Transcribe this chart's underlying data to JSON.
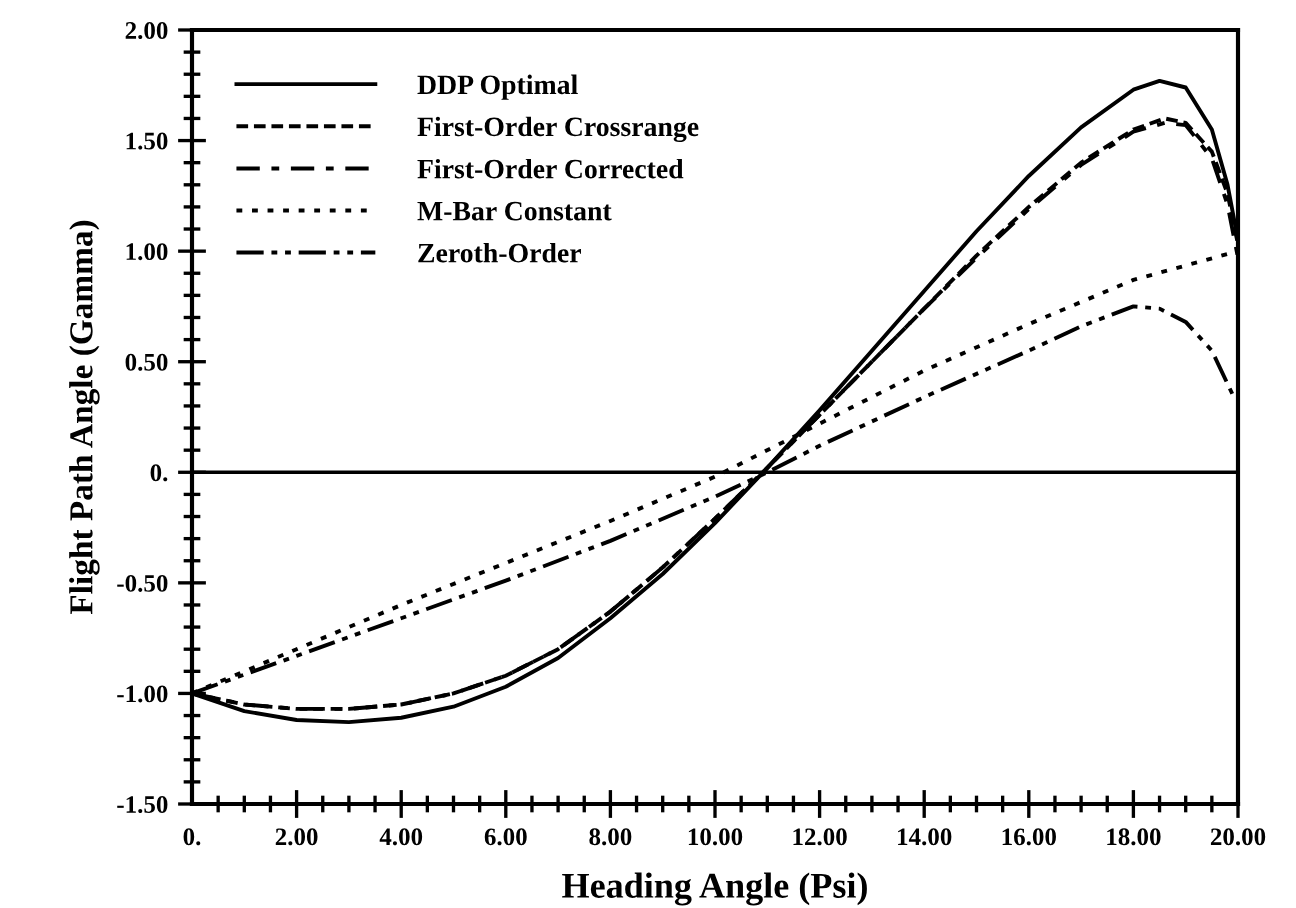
{
  "chart_data": {
    "type": "line",
    "xlabel": "Heading Angle (Psi)",
    "ylabel": "Flight Path Angle (Gamma)",
    "xlim": [
      0,
      20
    ],
    "ylim": [
      -1.5,
      2.0
    ],
    "xticks": [
      {
        "value": 0,
        "label": "0."
      },
      {
        "value": 2,
        "label": "2.00"
      },
      {
        "value": 4,
        "label": "4.00"
      },
      {
        "value": 6,
        "label": "6.00"
      },
      {
        "value": 8,
        "label": "8.00"
      },
      {
        "value": 10,
        "label": "10.00"
      },
      {
        "value": 12,
        "label": "12.00"
      },
      {
        "value": 14,
        "label": "14.00"
      },
      {
        "value": 16,
        "label": "16.00"
      },
      {
        "value": 18,
        "label": "18.00"
      },
      {
        "value": 20,
        "label": "20.00"
      }
    ],
    "yticks": [
      {
        "value": -1.5,
        "label": "-1.50"
      },
      {
        "value": -1.0,
        "label": "-1.00"
      },
      {
        "value": -0.5,
        "label": "-0.50"
      },
      {
        "value": 0,
        "label": "0."
      },
      {
        "value": 0.5,
        "label": "0.50"
      },
      {
        "value": 1.0,
        "label": "1.00"
      },
      {
        "value": 1.5,
        "label": "1.50"
      },
      {
        "value": 2.0,
        "label": "2.00"
      }
    ],
    "grid": false,
    "legend": "top left",
    "marker": "none",
    "ref_lines": [
      {
        "axis": "y",
        "value": 0,
        "color": "#000000",
        "line_style": "solid"
      }
    ],
    "series": [
      {
        "name": "DDP Optimal",
        "color": "#000000",
        "line_style": "solid",
        "x": [
          0,
          1,
          2,
          3,
          4,
          5,
          6,
          7,
          8,
          9,
          10,
          11,
          12,
          13,
          14,
          15,
          16,
          17,
          18,
          18.5,
          19,
          19.5,
          19.8,
          20
        ],
        "values": [
          -1.0,
          -1.08,
          -1.12,
          -1.13,
          -1.11,
          -1.06,
          -0.97,
          -0.84,
          -0.66,
          -0.46,
          -0.23,
          0.02,
          0.28,
          0.55,
          0.82,
          1.09,
          1.34,
          1.56,
          1.73,
          1.77,
          1.74,
          1.55,
          1.3,
          1.05
        ]
      },
      {
        "name": "First-Order Crossrange",
        "color": "#000000",
        "line_style": "dashed",
        "x": [
          0,
          1,
          2,
          3,
          4,
          5,
          6,
          7,
          8,
          9,
          10,
          11,
          12,
          13,
          14,
          15,
          16,
          17,
          18,
          18.6,
          19,
          19.5,
          19.8,
          20
        ],
        "values": [
          -1.0,
          -1.05,
          -1.07,
          -1.07,
          -1.05,
          -1.0,
          -0.92,
          -0.8,
          -0.63,
          -0.43,
          -0.21,
          0.02,
          0.26,
          0.5,
          0.74,
          0.98,
          1.2,
          1.4,
          1.55,
          1.6,
          1.58,
          1.45,
          1.26,
          1.03
        ]
      },
      {
        "name": "First-Order Corrected",
        "color": "#000000",
        "line_style": "dashdot",
        "x": [
          0,
          1,
          2,
          3,
          4,
          5,
          6,
          7,
          8,
          9,
          10,
          11,
          12,
          13,
          14,
          15,
          16,
          17,
          18,
          18.6,
          19,
          19.5,
          19.8,
          20
        ],
        "values": [
          -1.0,
          -1.05,
          -1.07,
          -1.07,
          -1.05,
          -1.0,
          -0.92,
          -0.8,
          -0.63,
          -0.43,
          -0.21,
          0.02,
          0.26,
          0.5,
          0.74,
          0.97,
          1.19,
          1.39,
          1.54,
          1.58,
          1.57,
          1.42,
          1.21,
          0.97
        ]
      },
      {
        "name": "M-Bar Constant",
        "color": "#000000",
        "line_style": "dotted",
        "x": [
          0,
          2,
          4,
          6,
          8,
          10,
          12,
          14,
          16,
          18,
          20
        ],
        "values": [
          -1.0,
          -0.8,
          -0.6,
          -0.41,
          -0.22,
          -0.02,
          0.22,
          0.46,
          0.67,
          0.87,
          1.0
        ]
      },
      {
        "name": "Zeroth-Order",
        "color": "#000000",
        "line_style": "dashdotdot",
        "x": [
          0,
          2,
          4,
          6,
          8,
          10,
          11,
          12,
          14,
          16,
          17,
          18,
          18.5,
          19,
          19.5,
          19.8,
          19.9
        ],
        "values": [
          -1.0,
          -0.83,
          -0.66,
          -0.49,
          -0.31,
          -0.11,
          0.0,
          0.12,
          0.34,
          0.55,
          0.66,
          0.75,
          0.74,
          0.68,
          0.55,
          0.4,
          0.35
        ]
      }
    ]
  }
}
